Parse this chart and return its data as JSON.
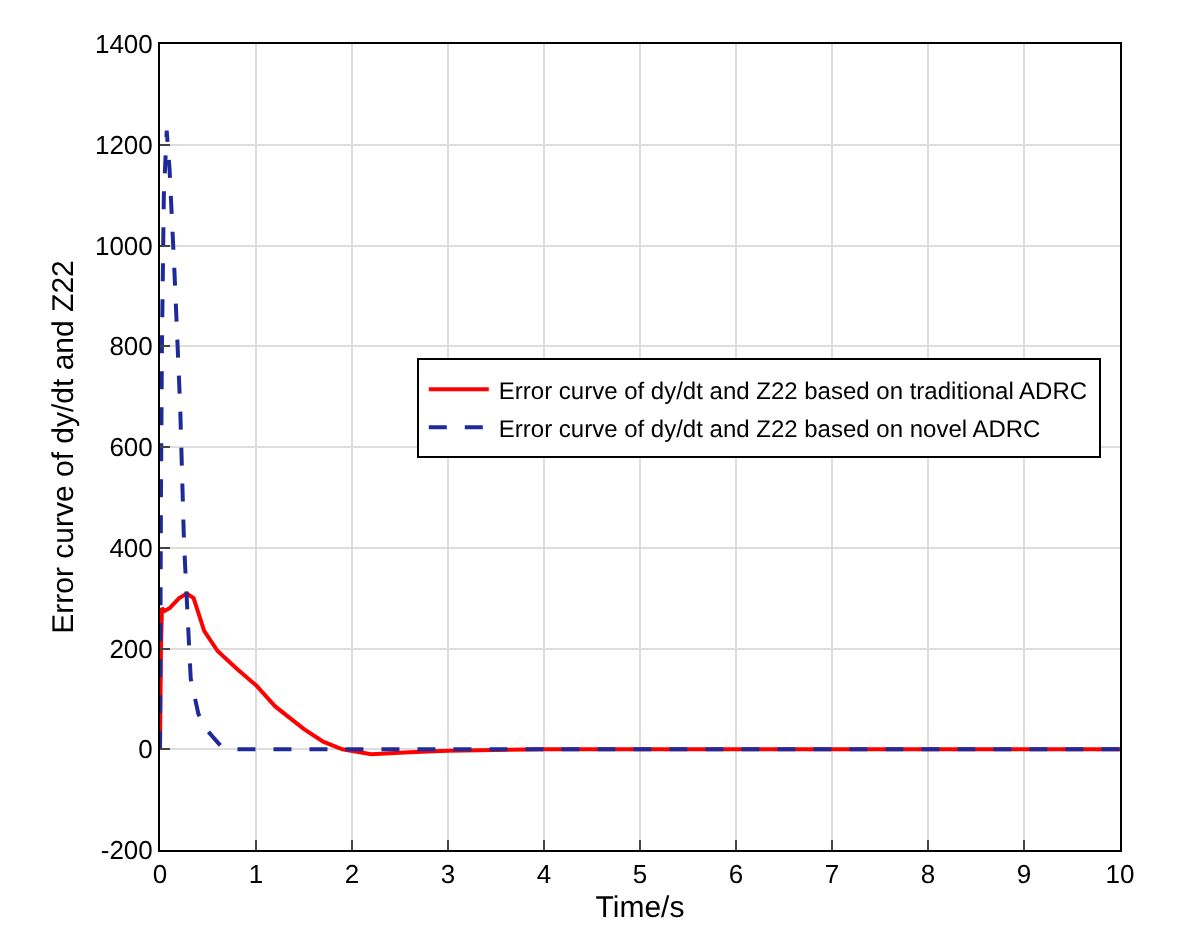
{
  "chart_data": {
    "type": "line",
    "xlabel": "Time/s",
    "ylabel": "Error curve of dy/dt and Z22",
    "xlim": [
      0,
      10
    ],
    "xticks": [
      0,
      1,
      2,
      3,
      4,
      5,
      6,
      7,
      8,
      9,
      10
    ],
    "ylim": [
      -200,
      1400
    ],
    "yticks": [
      -200,
      0,
      200,
      400,
      600,
      800,
      1000,
      1200,
      1400
    ],
    "grid": true,
    "legend": "top right",
    "series": [
      {
        "name": "Error curve of dy/dt and Z22 based on traditional ADRC",
        "color": "#ff0000",
        "line_style": "solid",
        "x": [
          0,
          0.01,
          0.02,
          0.05,
          0.1,
          0.2,
          0.28,
          0.35,
          0.46,
          0.6,
          0.8,
          1.0,
          1.2,
          1.5,
          1.7,
          1.9,
          2.2,
          2.6,
          3,
          4,
          6,
          8,
          10
        ],
        "values": [
          0,
          200,
          280,
          275,
          280,
          300,
          309,
          300,
          235,
          195,
          160,
          127,
          85,
          40,
          15,
          0,
          -10,
          -6,
          -3,
          0,
          0,
          0,
          0
        ]
      },
      {
        "name": "Error curve of dy/dt and Z22 based on novel ADRC",
        "color": "#1f2a99",
        "line_style": "dashed",
        "x": [
          0,
          0.01,
          0.02,
          0.04,
          0.07,
          0.1,
          0.15,
          0.18,
          0.21,
          0.25,
          0.32,
          0.4,
          0.48,
          0.64,
          0.8,
          1,
          2,
          4,
          6,
          8,
          10
        ],
        "values": [
          0,
          500,
          800,
          1100,
          1228,
          1150,
          950,
          816,
          681,
          410,
          140,
          70,
          40,
          5,
          0,
          0,
          0,
          0,
          0,
          0,
          0
        ]
      }
    ]
  }
}
